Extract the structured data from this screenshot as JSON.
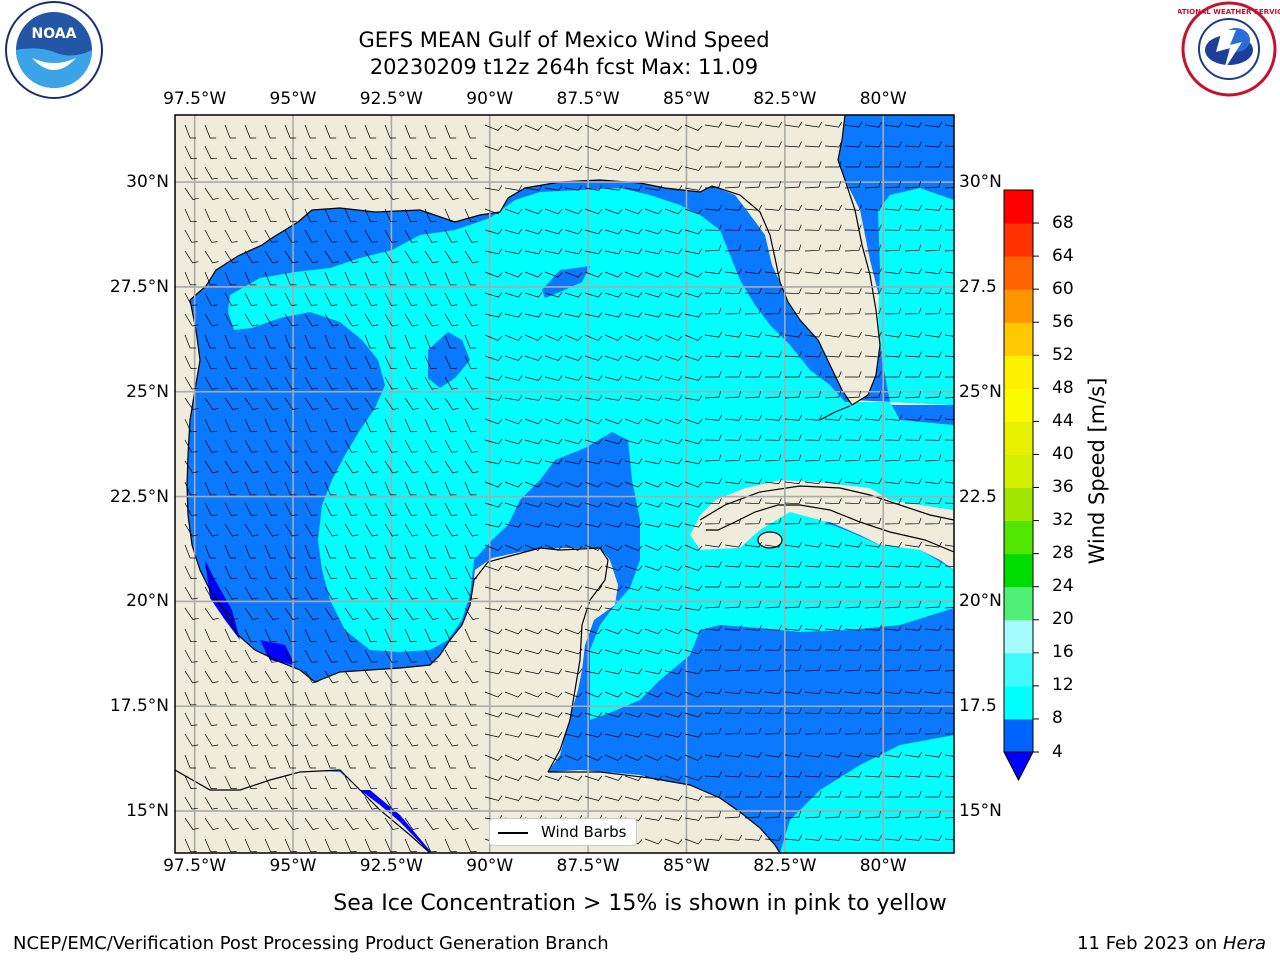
{
  "title": {
    "line1": "GEFS MEAN Gulf of Mexico Wind Speed",
    "line2": "20230209 t12z 264h fcst   Max: 11.09"
  },
  "logos": {
    "left": "noaa-logo",
    "left_text": "NOAA",
    "right": "nws-logo",
    "right_text": "NATIONAL WEATHER SERVICE"
  },
  "axes": {
    "lon_labels": [
      "97.5°W",
      "95°W",
      "92.5°W",
      "90°W",
      "87.5°W",
      "85°W",
      "82.5°W",
      "80°W"
    ],
    "lat_labels": [
      "30°N",
      "27.5°N",
      "25°N",
      "22.5°N",
      "20°N",
      "17.5°N",
      "15°N"
    ],
    "lat_labels_right": [
      "30°N",
      "27.5",
      "25°N",
      "22.5",
      "20°N",
      "17.5",
      "15°N"
    ],
    "lon_values": [
      -97.5,
      -95,
      -92.5,
      -90,
      -87.5,
      -85,
      -82.5,
      -80
    ],
    "lat_values": [
      30,
      27.5,
      25,
      22.5,
      20,
      17.5,
      15
    ],
    "lon_range": [
      -98,
      -78.2
    ],
    "lat_range": [
      14,
      31.6
    ]
  },
  "colorbar": {
    "label": "Wind Speed [m/s]",
    "ticks": [
      "68",
      "64",
      "60",
      "56",
      "52",
      "48",
      "44",
      "40",
      "36",
      "32",
      "28",
      "24",
      "20",
      "16",
      "12",
      "8",
      "4"
    ],
    "levels": [
      4,
      8,
      12,
      16,
      20,
      24,
      28,
      32,
      36,
      40,
      44,
      48,
      52,
      56,
      60,
      64,
      68
    ],
    "colors": [
      "#0064ff",
      "#00ffff",
      "#3ffafa",
      "#a6fcfc",
      "#50f078",
      "#00dc00",
      "#50e600",
      "#a0e600",
      "#d2f000",
      "#e6f000",
      "#fafa00",
      "#fff000",
      "#ffc800",
      "#ff9600",
      "#ff6400",
      "#ff3200",
      "#ff0000"
    ],
    "under_color": "#0000ff"
  },
  "fill_colors": {
    "land": "#efecdb",
    "speed_4_8": "#0a78ff",
    "speed_8_12": "#00ffff",
    "speed_under_4": "#0000ff"
  },
  "legend": {
    "label": "Wind Barbs"
  },
  "notes": {
    "sea_ice": "Sea Ice Concentration > 15% is shown in pink to yellow",
    "producer": "NCEP/EMC/Verification Post Processing Product Generation Branch",
    "date": "11 Feb 2023 on ",
    "machine": "Hera"
  }
}
